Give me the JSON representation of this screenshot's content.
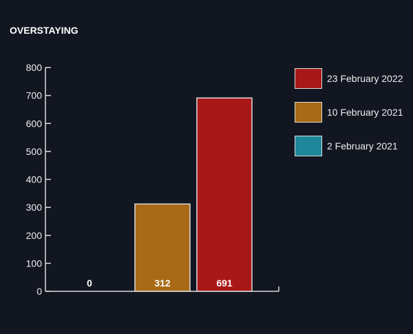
{
  "chart_data": {
    "type": "bar",
    "title": "OVERSTAYING",
    "categories": [
      "2 February 2021",
      "10 February 2021",
      "23 February 2022"
    ],
    "values": [
      0,
      312,
      691
    ],
    "colors": [
      "#1e8799",
      "#a86a16",
      "#a91818"
    ],
    "ylim": [
      0,
      800
    ],
    "yticks": [
      "0",
      "100",
      "200",
      "300",
      "400",
      "500",
      "600",
      "700",
      "800"
    ],
    "xlabel": "",
    "ylabel": "",
    "grid": false,
    "legend_position": "right",
    "legend": [
      {
        "label": "23 February 2022",
        "color": "#a91818"
      },
      {
        "label": "10 February 2021",
        "color": "#a86a16"
      },
      {
        "label": "2 February 2021",
        "color": "#1e8799"
      }
    ],
    "data_labels": [
      "0",
      "312",
      "691"
    ]
  }
}
